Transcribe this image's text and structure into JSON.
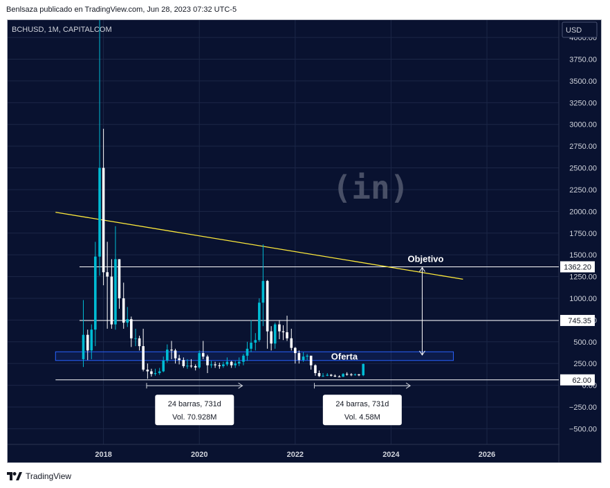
{
  "header": {
    "publish_info": "Benlsaza publicado en TradingView.com, Jun 28, 2023 07:32 UTC-5"
  },
  "footer": {
    "brand": "TradingView"
  },
  "chart_data": {
    "type": "candlestick",
    "title": "BCHUSD, 1M, CAPITALCOM",
    "currency_button": "USD",
    "watermark": "(in)",
    "ylim": [
      -680,
      4200
    ],
    "y_ticks": [
      {
        "v": 4000,
        "label": "4000.00"
      },
      {
        "v": 3750,
        "label": "3750.00"
      },
      {
        "v": 3500,
        "label": "3500.00"
      },
      {
        "v": 3250,
        "label": "3250.00"
      },
      {
        "v": 3000,
        "label": "3000.00"
      },
      {
        "v": 2750,
        "label": "2750.00"
      },
      {
        "v": 2500,
        "label": "2500.00"
      },
      {
        "v": 2250,
        "label": "2250.00"
      },
      {
        "v": 2000,
        "label": "2000.00"
      },
      {
        "v": 1750,
        "label": "1750.00"
      },
      {
        "v": 1500,
        "label": "1500.00"
      },
      {
        "v": 1250,
        "label": "1250.00"
      },
      {
        "v": 1000,
        "label": "1000.00"
      },
      {
        "v": 750,
        "label": "750.00"
      },
      {
        "v": 500,
        "label": "500.00"
      },
      {
        "v": 250,
        "label": "250.00"
      },
      {
        "v": 0,
        "label": "0.00"
      },
      {
        "v": -250,
        "label": "−250.00"
      },
      {
        "v": -500,
        "label": "−500.00"
      }
    ],
    "x_ticks": [
      {
        "t": 2018,
        "label": "2018"
      },
      {
        "t": 2020,
        "label": "2020"
      },
      {
        "t": 2022,
        "label": "2022"
      },
      {
        "t": 2024,
        "label": "2024"
      },
      {
        "t": 2026,
        "label": "2026"
      }
    ],
    "xlim": [
      2016.0,
      2027.5
    ],
    "candles": [
      [
        2017.58,
        300,
        580,
        980,
        210
      ],
      [
        2017.67,
        580,
        400,
        640,
        290
      ],
      [
        2017.75,
        400,
        640,
        700,
        300
      ],
      [
        2017.83,
        640,
        1480,
        1650,
        450
      ],
      [
        2017.92,
        1480,
        2500,
        4200,
        1260
      ],
      [
        2018.0,
        2500,
        1300,
        2950,
        1150
      ],
      [
        2018.08,
        1300,
        1250,
        1650,
        650
      ],
      [
        2018.17,
        1250,
        700,
        1450,
        650
      ],
      [
        2018.25,
        700,
        1450,
        1830,
        640
      ],
      [
        2018.33,
        1450,
        1000,
        1450,
        880
      ],
      [
        2018.42,
        1000,
        720,
        1180,
        650
      ],
      [
        2018.5,
        720,
        760,
        900,
        670
      ],
      [
        2018.58,
        760,
        540,
        790,
        440
      ],
      [
        2018.67,
        540,
        540,
        650,
        450
      ],
      [
        2018.75,
        540,
        450,
        570,
        400
      ],
      [
        2018.83,
        450,
        180,
        650,
        160
      ],
      [
        2018.92,
        180,
        160,
        250,
        75
      ],
      [
        2019.0,
        160,
        130,
        190,
        100
      ],
      [
        2019.08,
        130,
        140,
        190,
        110
      ],
      [
        2019.17,
        140,
        160,
        200,
        120
      ],
      [
        2019.25,
        160,
        285,
        330,
        150
      ],
      [
        2019.33,
        285,
        410,
        470,
        260
      ],
      [
        2019.42,
        410,
        400,
        510,
        300
      ],
      [
        2019.5,
        400,
        310,
        420,
        250
      ],
      [
        2019.58,
        310,
        290,
        350,
        240
      ],
      [
        2019.67,
        290,
        220,
        320,
        200
      ],
      [
        2019.75,
        220,
        225,
        300,
        190
      ],
      [
        2019.83,
        225,
        220,
        300,
        200
      ],
      [
        2019.92,
        220,
        205,
        240,
        170
      ],
      [
        2020.0,
        205,
        370,
        400,
        190
      ],
      [
        2020.08,
        370,
        330,
        510,
        300
      ],
      [
        2020.17,
        330,
        230,
        350,
        140
      ],
      [
        2020.25,
        230,
        240,
        280,
        200
      ],
      [
        2020.33,
        240,
        230,
        270,
        200
      ],
      [
        2020.42,
        230,
        220,
        260,
        190
      ],
      [
        2020.5,
        220,
        240,
        270,
        200
      ],
      [
        2020.58,
        240,
        270,
        320,
        220
      ],
      [
        2020.67,
        270,
        230,
        280,
        200
      ],
      [
        2020.75,
        230,
        250,
        280,
        200
      ],
      [
        2020.83,
        250,
        270,
        320,
        220
      ],
      [
        2020.92,
        270,
        340,
        360,
        230
      ],
      [
        2021.0,
        340,
        420,
        500,
        280
      ],
      [
        2021.08,
        420,
        490,
        750,
        380
      ],
      [
        2021.17,
        490,
        520,
        600,
        400
      ],
      [
        2021.25,
        520,
        950,
        1000,
        500
      ],
      [
        2021.33,
        950,
        1200,
        1620,
        680
      ],
      [
        2021.42,
        1200,
        620,
        1210,
        420
      ],
      [
        2021.5,
        620,
        480,
        680,
        400
      ],
      [
        2021.58,
        480,
        700,
        720,
        420
      ],
      [
        2021.67,
        700,
        620,
        750,
        530
      ],
      [
        2021.75,
        620,
        610,
        690,
        520
      ],
      [
        2021.83,
        610,
        540,
        800,
        510
      ],
      [
        2021.92,
        540,
        430,
        650,
        400
      ],
      [
        2022.0,
        430,
        370,
        440,
        250
      ],
      [
        2022.08,
        370,
        290,
        400,
        250
      ],
      [
        2022.17,
        290,
        330,
        380,
        270
      ],
      [
        2022.25,
        330,
        340,
        360,
        290
      ],
      [
        2022.33,
        340,
        230,
        340,
        180
      ],
      [
        2022.42,
        230,
        140,
        240,
        110
      ],
      [
        2022.5,
        140,
        105,
        170,
        95
      ],
      [
        2022.58,
        105,
        110,
        140,
        95
      ],
      [
        2022.67,
        110,
        120,
        140,
        105
      ],
      [
        2022.75,
        120,
        110,
        130,
        100
      ],
      [
        2022.83,
        110,
        100,
        125,
        95
      ],
      [
        2022.92,
        100,
        98,
        115,
        92
      ],
      [
        2023.0,
        98,
        130,
        140,
        95
      ],
      [
        2023.08,
        130,
        125,
        150,
        110
      ],
      [
        2023.17,
        125,
        120,
        140,
        105
      ],
      [
        2023.25,
        120,
        125,
        135,
        110
      ],
      [
        2023.33,
        125,
        115,
        130,
        105
      ],
      [
        2023.42,
        115,
        245,
        250,
        105
      ]
    ],
    "trendline": {
      "from": [
        2017.0,
        1990
      ],
      "to": [
        2025.5,
        1220
      ]
    },
    "horizontal_levels": [
      {
        "value": 1362.2,
        "label": "1362.20",
        "x_start": 2017.5
      },
      {
        "value": 745.35,
        "label": "745.35",
        "x_start": 2017.5
      },
      {
        "value": 62.0,
        "label": "62.00",
        "x_start": 2017.0
      }
    ],
    "zones": [
      {
        "label": "Oferta",
        "x0": 2017.0,
        "x1": 2025.3,
        "y0": 285,
        "y1": 385
      }
    ],
    "target_arrow": {
      "label": "Objetivo",
      "x": 2024.65,
      "y_from": 340,
      "y_to": 1362
    }
  },
  "annotations": [
    {
      "range_x": [
        2018.9,
        2020.9
      ],
      "y": -5,
      "lines": [
        "24 barras, 731d",
        "Vol. 70.928M"
      ]
    },
    {
      "range_x": [
        2022.4,
        2024.4
      ],
      "y": -5,
      "lines": [
        "24 barras, 731d",
        "Vol. 4.58M"
      ]
    }
  ],
  "colors": {
    "background": "#091230",
    "candle_up": "#00bcd4",
    "candle_down": "#ffffff",
    "trendline": "#ffeb3b",
    "zone_border": "#2962ff",
    "level_line": "#ffffff",
    "axis_text": "#d1d4dc"
  }
}
